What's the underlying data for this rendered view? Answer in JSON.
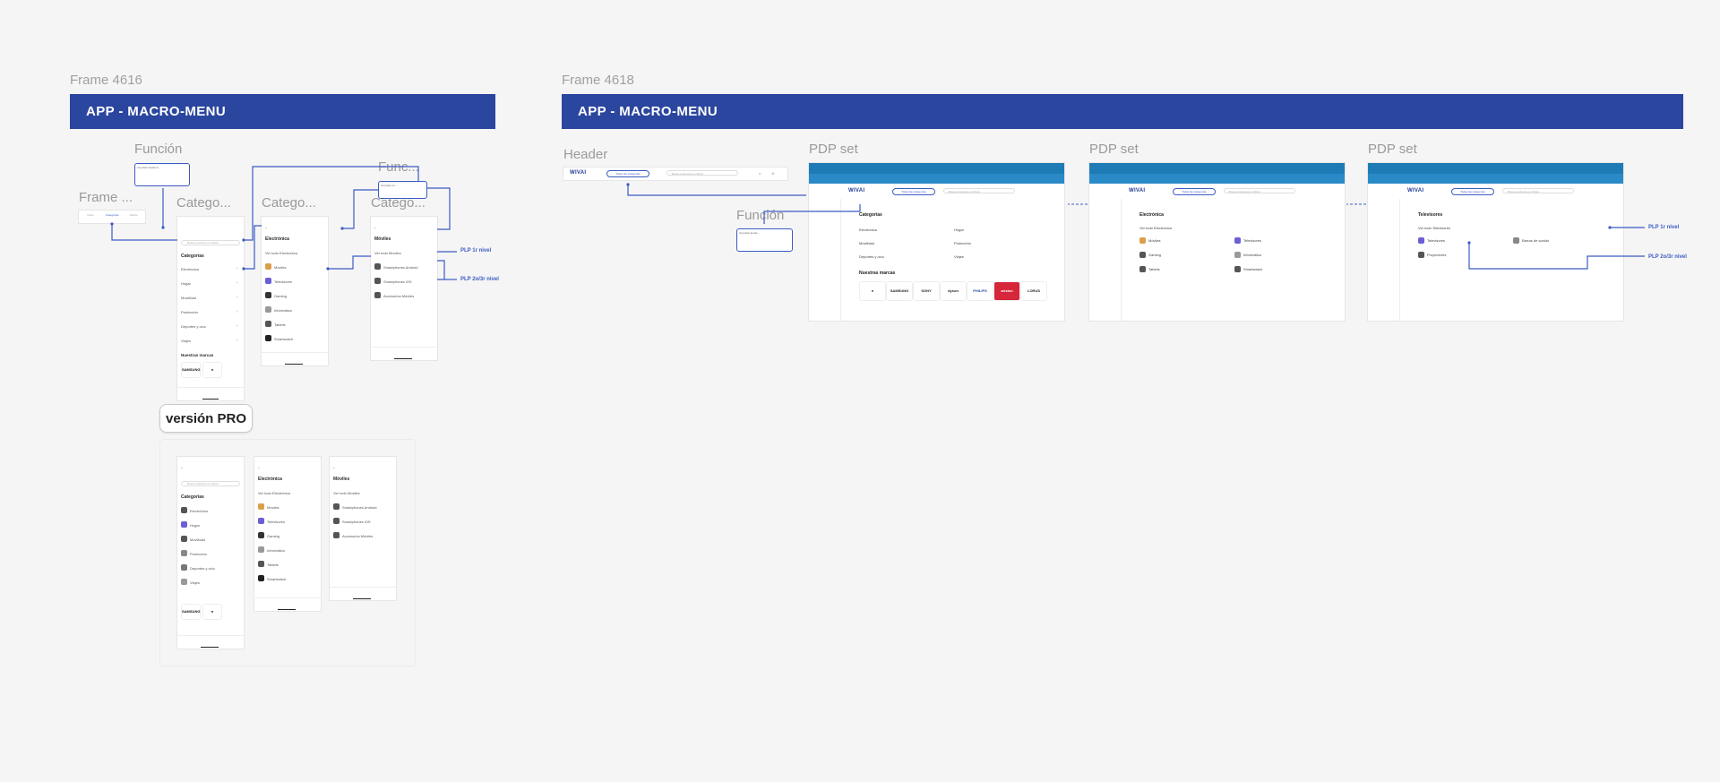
{
  "frames": [
    {
      "label": "Frame 4616",
      "banner": "APP - MACRO-MENU"
    },
    {
      "label": "Frame 4618",
      "banner": "APP - MACRO-MENU"
    }
  ],
  "left": {
    "funcion_label": "Función",
    "funcion2_label": "Func...",
    "frame_small_label": "Frame ...",
    "catego_labels": [
      "Catego...",
      "Catego...",
      "Catego..."
    ],
    "plp1": "PLP 1r nivel",
    "plp2": "PLP 2o/3r nivel",
    "pro_button": "versión PRO",
    "screen1": {
      "search": "Busca productos en Wivai",
      "title": "Categorías",
      "items": [
        "Electrónica",
        "Hogar",
        "Movilidad",
        "Protección",
        "Deportes y ocio",
        "Viajes"
      ],
      "brands_title": "Nuestras marcas",
      "brands": [
        "SAMSUNG",
        ""
      ]
    },
    "screen2": {
      "title": "Electrónica",
      "see_all": "Ver todo Electrónica",
      "items": [
        "Móviles",
        "Televisores",
        "Gaming",
        "Informática",
        "Tablets",
        "Smartwatch"
      ]
    },
    "screen3": {
      "title": "Móviles",
      "see_all": "Ver todo Móviles",
      "items": [
        "Smartphones Android",
        "Smartphones iOS",
        "Accesorios Móviles"
      ]
    },
    "pro_screen1": {
      "search": "Busca productos en Wivai",
      "title": "Categorías",
      "items": [
        "Electrónica",
        "Hogar",
        "Movilidad",
        "Protección",
        "Deportes y ocio",
        "Viajes"
      ],
      "brands": [
        "SAMSUNG",
        ""
      ]
    },
    "tabs": [
      "Inicio",
      "Categorías",
      "Carrito"
    ]
  },
  "right": {
    "header_label": "Header",
    "pdp_labels": [
      "PDP set",
      "PDP set",
      "PDP set"
    ],
    "funcion_label": "Función",
    "logo": "WIVAI",
    "all_categories": "Todas las categorías",
    "search_placeholder": "Busca productos en Wivai",
    "desk1": {
      "title": "Categorías",
      "left_items": [
        "Electrónica",
        "Movilidad",
        "Deportes y ocio"
      ],
      "right_items": [
        "Hogar",
        "Protección",
        "Viajes"
      ],
      "brands_title": "Nuestras marcas",
      "brands": [
        "",
        "SAMSUNG",
        "SONY",
        "dyson",
        "PHILIPS",
        "ariston",
        "LORUS"
      ]
    },
    "desk2": {
      "title": "Electrónica",
      "see_all": "Ver todo Electrónica",
      "left_items": [
        "Móviles",
        "Gaming",
        "Tablets"
      ],
      "right_items": [
        "Televisores",
        "Informática",
        "Smartwatch"
      ]
    },
    "desk3": {
      "title": "Televisores",
      "see_all": "Ver todo Televisores",
      "left_items": [
        "Televisores",
        "Proyectores"
      ],
      "right_items": [
        "Barras de sonido"
      ]
    },
    "plp1": "PLP 1r nivel",
    "plp2": "PLP 2o/3r nivel"
  },
  "colors": {
    "banner": "#2b469f",
    "accent": "#3b5bc4",
    "header_blue": "#1f7bb6"
  }
}
